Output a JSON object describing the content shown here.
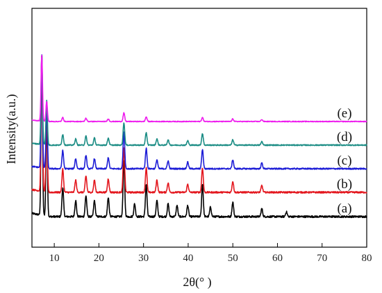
{
  "chart_data": {
    "type": "line",
    "title": "",
    "xlabel": "2θ(° )",
    "ylabel": "Intensity(a.u.)",
    "xlim": [
      5,
      80
    ],
    "x_ticks": [
      10,
      20,
      30,
      40,
      50,
      60,
      70,
      80
    ],
    "y_ticks_shown": false,
    "grid": false,
    "legend": "none",
    "series": [
      {
        "name": "(a)",
        "color": "#000000",
        "peaks": [
          {
            "x": 7.2,
            "y": 1.0
          },
          {
            "x": 8.3,
            "y": 0.6
          },
          {
            "x": 11.9,
            "y": 0.18
          },
          {
            "x": 14.8,
            "y": 0.1
          },
          {
            "x": 17.1,
            "y": 0.13
          },
          {
            "x": 19.0,
            "y": 0.1
          },
          {
            "x": 22.1,
            "y": 0.12
          },
          {
            "x": 25.6,
            "y": 0.35
          },
          {
            "x": 28.0,
            "y": 0.08
          },
          {
            "x": 30.6,
            "y": 0.2
          },
          {
            "x": 33.0,
            "y": 0.1
          },
          {
            "x": 35.5,
            "y": 0.08
          },
          {
            "x": 37.5,
            "y": 0.07
          },
          {
            "x": 39.9,
            "y": 0.07
          },
          {
            "x": 43.2,
            "y": 0.2
          },
          {
            "x": 45.0,
            "y": 0.06
          },
          {
            "x": 50.0,
            "y": 0.09
          },
          {
            "x": 56.5,
            "y": 0.05
          },
          {
            "x": 62.0,
            "y": 0.03
          }
        ]
      },
      {
        "name": "(b)",
        "color": "#e3161d",
        "peaks": [
          {
            "x": 7.2,
            "y": 1.0
          },
          {
            "x": 8.3,
            "y": 0.55
          },
          {
            "x": 11.9,
            "y": 0.17
          },
          {
            "x": 14.8,
            "y": 0.09
          },
          {
            "x": 17.1,
            "y": 0.12
          },
          {
            "x": 19.0,
            "y": 0.09
          },
          {
            "x": 22.1,
            "y": 0.1
          },
          {
            "x": 25.6,
            "y": 0.33
          },
          {
            "x": 30.6,
            "y": 0.18
          },
          {
            "x": 33.0,
            "y": 0.09
          },
          {
            "x": 35.5,
            "y": 0.07
          },
          {
            "x": 39.9,
            "y": 0.06
          },
          {
            "x": 43.2,
            "y": 0.18
          },
          {
            "x": 50.0,
            "y": 0.08
          },
          {
            "x": 56.5,
            "y": 0.05
          }
        ]
      },
      {
        "name": "(c)",
        "color": "#1c1cd6",
        "peaks": [
          {
            "x": 7.2,
            "y": 1.0
          },
          {
            "x": 8.3,
            "y": 0.55
          },
          {
            "x": 11.9,
            "y": 0.16
          },
          {
            "x": 14.8,
            "y": 0.09
          },
          {
            "x": 17.1,
            "y": 0.12
          },
          {
            "x": 19.0,
            "y": 0.09
          },
          {
            "x": 22.1,
            "y": 0.1
          },
          {
            "x": 25.6,
            "y": 0.33
          },
          {
            "x": 30.6,
            "y": 0.18
          },
          {
            "x": 33.0,
            "y": 0.08
          },
          {
            "x": 35.5,
            "y": 0.07
          },
          {
            "x": 39.9,
            "y": 0.06
          },
          {
            "x": 43.2,
            "y": 0.17
          },
          {
            "x": 50.0,
            "y": 0.08
          },
          {
            "x": 56.5,
            "y": 0.05
          }
        ]
      },
      {
        "name": "(d)",
        "color": "#1a8c84",
        "peaks": [
          {
            "x": 7.2,
            "y": 1.0
          },
          {
            "x": 8.3,
            "y": 0.5
          },
          {
            "x": 11.9,
            "y": 0.12
          },
          {
            "x": 14.8,
            "y": 0.07
          },
          {
            "x": 17.1,
            "y": 0.1
          },
          {
            "x": 19.0,
            "y": 0.08
          },
          {
            "x": 22.1,
            "y": 0.08
          },
          {
            "x": 25.6,
            "y": 0.25
          },
          {
            "x": 30.6,
            "y": 0.14
          },
          {
            "x": 33.0,
            "y": 0.07
          },
          {
            "x": 35.5,
            "y": 0.06
          },
          {
            "x": 39.9,
            "y": 0.05
          },
          {
            "x": 43.2,
            "y": 0.13
          },
          {
            "x": 50.0,
            "y": 0.06
          },
          {
            "x": 56.5,
            "y": 0.04
          }
        ]
      },
      {
        "name": "(e)",
        "color": "#ee1cee",
        "peaks": [
          {
            "x": 7.2,
            "y": 1.0
          },
          {
            "x": 8.3,
            "y": 0.3
          },
          {
            "x": 11.9,
            "y": 0.06
          },
          {
            "x": 17.1,
            "y": 0.05
          },
          {
            "x": 22.1,
            "y": 0.04
          },
          {
            "x": 25.6,
            "y": 0.13
          },
          {
            "x": 30.6,
            "y": 0.07
          },
          {
            "x": 43.2,
            "y": 0.06
          },
          {
            "x": 50.0,
            "y": 0.04
          },
          {
            "x": 56.5,
            "y": 0.03
          }
        ]
      }
    ]
  }
}
